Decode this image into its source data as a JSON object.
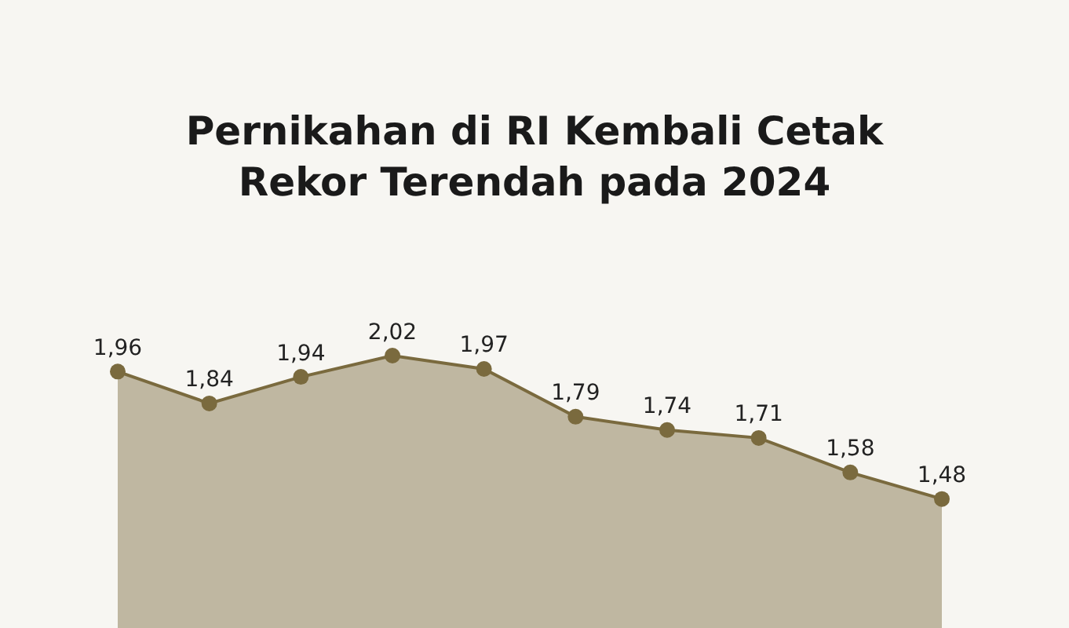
{
  "chart_data": {
    "type": "area",
    "title": "Pernikahan di RI Kembali Cetak\nRekor Terendah pada 2024",
    "categories": [
      null,
      null,
      null,
      null,
      null,
      null,
      null,
      null,
      null,
      null
    ],
    "series": [
      {
        "color": "#7a6a3e",
        "values": [
          1.96,
          1.84,
          1.94,
          2.02,
          1.97,
          1.79,
          1.74,
          1.71,
          1.58,
          1.48
        ],
        "value_labels": [
          "1,96",
          "1,84",
          "1,94",
          "2,02",
          "1,97",
          "1,79",
          "1,74",
          "1,71",
          "1,58",
          "1,48"
        ]
      }
    ],
    "tick_labels": false,
    "marker": "circle"
  }
}
